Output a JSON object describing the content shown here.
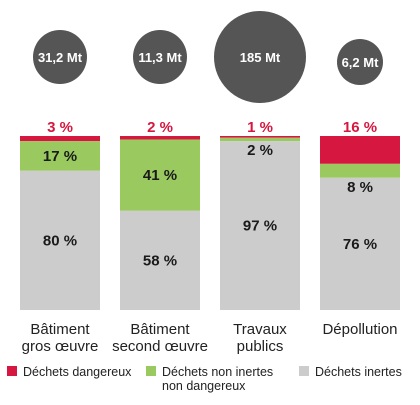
{
  "colors": {
    "dangerous": "#d6173f",
    "non_inert": "#99c95f",
    "inert": "#cccccc",
    "bubble": "#555555",
    "bubble_text": "#ffffff",
    "dangerous_label": "#d6173f",
    "value_text": "#1a1a1a",
    "axis_text": "#222222"
  },
  "chart_data": {
    "type": "bar",
    "stacked": true,
    "percent": true,
    "categories": [
      [
        "Bâtiment",
        "gros œuvre"
      ],
      [
        "Bâtiment",
        "second œuvre"
      ],
      [
        "Travaux",
        "publics"
      ],
      [
        "Dépollution"
      ]
    ],
    "totals": [
      {
        "value": 31.2,
        "label": "31,2 Mt"
      },
      {
        "value": 11.3,
        "label": "11,3 Mt"
      },
      {
        "value": 185,
        "label": "185 Mt"
      },
      {
        "value": 6.2,
        "label": "6,2 Mt"
      }
    ],
    "series": [
      {
        "name": "Déchets dangereux",
        "color_key": "dangerous",
        "values": [
          3,
          2,
          1,
          16
        ],
        "labels": [
          "3 %",
          "2 %",
          "1 %",
          "16 %"
        ]
      },
      {
        "name": "Déchets non inertes non dangereux",
        "legend_lines": [
          "Déchets non inertes",
          "non dangereux"
        ],
        "color_key": "non_inert",
        "values": [
          17,
          41,
          2,
          8
        ],
        "labels": [
          "17 %",
          "41 %",
          "2 %",
          "8 %"
        ]
      },
      {
        "name": "Déchets inertes",
        "color_key": "inert",
        "values": [
          80,
          58,
          97,
          76
        ],
        "labels": [
          "80 %",
          "58 %",
          "97 %",
          "76 %"
        ]
      }
    ],
    "ylim": [
      0,
      100
    ]
  }
}
